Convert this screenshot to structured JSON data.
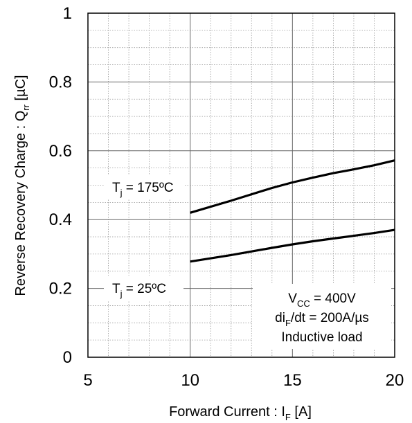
{
  "chart_data": {
    "type": "line",
    "xlabel": "Forward Current : I",
    "xlabel_sub": "F",
    "xlabel_unit": " [A]",
    "ylabel": "Reverse Recovery Charge : Q",
    "ylabel_sub": "rr",
    "ylabel_unit": "  [µC]",
    "xlim": [
      5,
      20
    ],
    "ylim": [
      0,
      1
    ],
    "x_ticks": [
      "5",
      "10",
      "15",
      "20"
    ],
    "y_ticks": [
      "0",
      "0.2",
      "0.4",
      "0.6",
      "0.8",
      "1"
    ],
    "x_tick_values": [
      5,
      10,
      15,
      20
    ],
    "y_tick_values": [
      0,
      0.2,
      0.4,
      0.6,
      0.8,
      1
    ],
    "grid": true,
    "series": [
      {
        "name": "Tj = 175ºC",
        "label_main": "T",
        "label_sub": "j",
        "label_rest": " = 175ºC",
        "x": [
          10,
          12,
          14,
          15,
          16,
          17,
          18,
          19,
          20
        ],
        "y": [
          0.42,
          0.455,
          0.492,
          0.508,
          0.522,
          0.535,
          0.546,
          0.558,
          0.572
        ]
      },
      {
        "name": "Tj = 25ºC",
        "label_main": "T",
        "label_sub": "j",
        "label_rest": " = 25ºC",
        "x": [
          10,
          12,
          14,
          15,
          16,
          17,
          18,
          19,
          20
        ],
        "y": [
          0.278,
          0.297,
          0.318,
          0.328,
          0.337,
          0.345,
          0.353,
          0.361,
          0.37
        ]
      }
    ],
    "conditions": [
      {
        "main": "V",
        "sub": "CC",
        "rest": " = 400V"
      },
      {
        "main": "di",
        "sub": "F",
        "rest": "/dt = 200A/µs"
      },
      {
        "main": "Inductive load",
        "sub": "",
        "rest": ""
      }
    ]
  }
}
